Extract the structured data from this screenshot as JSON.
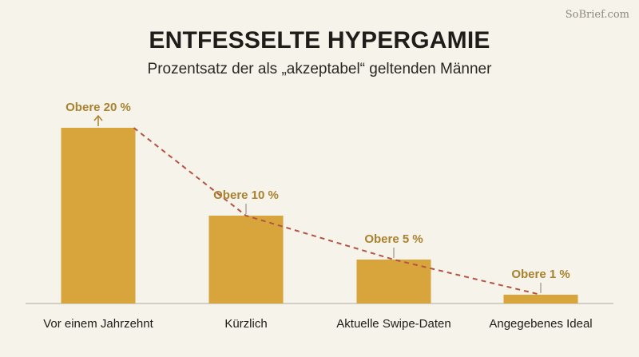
{
  "watermark": "SoBrief.com",
  "colors": {
    "background": "#f6f3ea",
    "bar": "#d7a53b",
    "label": "#a9822f",
    "trend_line": "#b45345",
    "axis": "#c8c3b9"
  },
  "chart_data": {
    "type": "bar",
    "title": "ENTFESSELTE HYPERGAMIE",
    "subtitle": "Prozentsatz der als „akzeptabel“ geltenden Männer",
    "categories": [
      "Vor einem Jahrzehnt",
      "Kürzlich",
      "Aktuelle Swipe-Daten",
      "Angegebenes Ideal"
    ],
    "values": [
      20,
      10,
      5,
      1
    ],
    "data_labels": [
      "Obere 20 %",
      "Obere 10 %",
      "Obere 5 %",
      "Obere 1 %"
    ],
    "trend_line": "dashed",
    "ylim": [
      0,
      20
    ],
    "grid": false,
    "xlabel": "",
    "ylabel": ""
  }
}
